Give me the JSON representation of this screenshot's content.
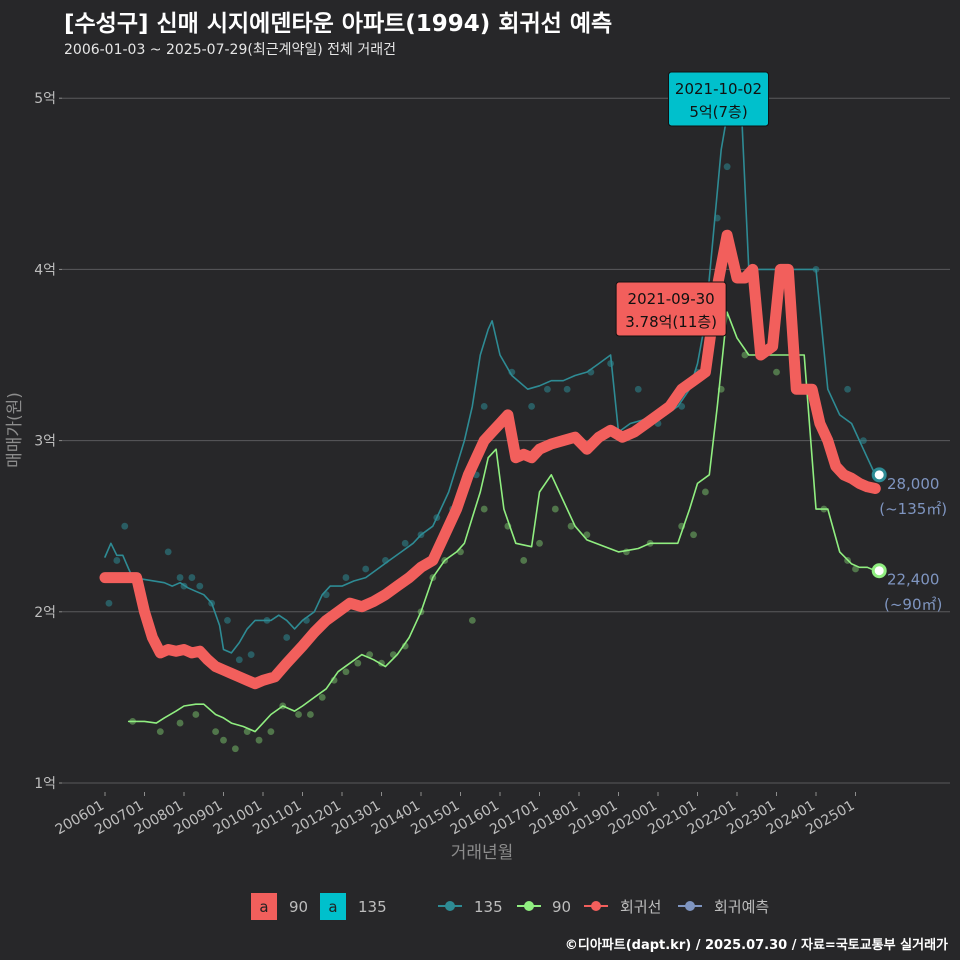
{
  "title": "[수성구] 신매 시지에덴타운 아파트(1994) 회귀선 예측",
  "subtitle": "2006-01-03 ~ 2025-07-29(최근계약일) 전체 거래건",
  "source": "©디아파트(dapt.kr) / 2025.07.30 / 자료=국토교통부 실거래가",
  "colors": {
    "c135": "#2e8b94",
    "c90": "#90ee80",
    "reg": "#f25f5c",
    "pred": "#7f95c0",
    "label135": "#00c0cc"
  },
  "chart_data": {
    "type": "line",
    "title": "[수성구] 신매 시지에덴타운 아파트(1994) 회귀선 예측",
    "xlabel": "거래년월",
    "ylabel": "매매가(원)",
    "ylim": [
      1,
      5.5
    ],
    "xlim": [
      2005.75,
      2027.5
    ],
    "y_ticks": [
      1,
      2,
      3,
      4,
      5
    ],
    "y_tick_labels": [
      "1억",
      "2억",
      "3억",
      "4억",
      "5억"
    ],
    "x_ticks": [
      2006,
      2007,
      2008,
      2009,
      2010,
      2011,
      2012,
      2013,
      2014,
      2015,
      2016,
      2017,
      2018,
      2019,
      2020,
      2021,
      2022,
      2023,
      2024,
      2025
    ],
    "x_tick_labels": [
      "200601",
      "200701",
      "200801",
      "200901",
      "201001",
      "201101",
      "201201",
      "201301",
      "201401",
      "201501",
      "201601",
      "201701",
      "201801",
      "201901",
      "202001",
      "202101",
      "202201",
      "202301",
      "202401",
      "202501"
    ],
    "series": [
      {
        "name": "135",
        "color": "#2e8b94",
        "x": [
          2006.0,
          2006.15,
          2006.3,
          2006.45,
          2006.6,
          2006.7,
          2007.5,
          2007.7,
          2007.9,
          2008.1,
          2008.3,
          2008.5,
          2008.7,
          2008.9,
          2009.0,
          2009.2,
          2009.4,
          2009.6,
          2009.8,
          2010.0,
          2010.2,
          2010.4,
          2010.6,
          2010.8,
          2011.0,
          2011.3,
          2011.5,
          2011.7,
          2012.0,
          2012.3,
          2012.6,
          2012.9,
          2013.2,
          2013.5,
          2013.8,
          2014.0,
          2014.3,
          2014.5,
          2014.7,
          2014.9,
          2015.1,
          2015.3,
          2015.5,
          2015.7,
          2015.8,
          2016.0,
          2016.3,
          2016.7,
          2017.0,
          2017.3,
          2017.6,
          2017.9,
          2018.2,
          2018.5,
          2018.8,
          2019.0,
          2019.3,
          2019.6,
          2019.9,
          2020.2,
          2020.5,
          2020.8,
          2021.0,
          2021.2,
          2021.4,
          2021.6,
          2021.75,
          2021.9,
          2022.1,
          2022.3,
          2022.6,
          2022.9,
          2023.3,
          2023.7,
          2024.0,
          2024.3,
          2024.6,
          2024.9,
          2025.1,
          2025.3,
          2025.5
        ],
        "values": [
          2.32,
          2.4,
          2.33,
          2.33,
          2.25,
          2.2,
          2.17,
          2.15,
          2.17,
          2.14,
          2.12,
          2.1,
          2.05,
          1.92,
          1.78,
          1.76,
          1.82,
          1.9,
          1.95,
          1.95,
          1.95,
          1.98,
          1.95,
          1.9,
          1.95,
          2.0,
          2.1,
          2.15,
          2.15,
          2.18,
          2.2,
          2.25,
          2.3,
          2.35,
          2.4,
          2.45,
          2.5,
          2.6,
          2.7,
          2.85,
          3.0,
          3.2,
          3.5,
          3.65,
          3.7,
          3.5,
          3.38,
          3.3,
          3.32,
          3.35,
          3.35,
          3.38,
          3.4,
          3.45,
          3.5,
          3.05,
          3.1,
          3.12,
          3.15,
          3.15,
          3.2,
          3.3,
          3.45,
          3.7,
          4.2,
          4.7,
          4.9,
          5.0,
          5.0,
          4.0,
          4.0,
          4.0,
          4.0,
          4.0,
          4.0,
          3.3,
          3.15,
          3.1,
          3.0,
          2.9,
          2.8
        ]
      },
      {
        "name": "90",
        "color": "#90ee80",
        "x": [
          2006.6,
          2007.0,
          2007.3,
          2007.5,
          2007.8,
          2008.0,
          2008.3,
          2008.5,
          2008.8,
          2009.0,
          2009.2,
          2009.5,
          2009.8,
          2010.0,
          2010.2,
          2010.5,
          2010.8,
          2011.0,
          2011.3,
          2011.6,
          2011.9,
          2012.2,
          2012.5,
          2012.8,
          2013.1,
          2013.4,
          2013.7,
          2014.0,
          2014.3,
          2014.6,
          2014.9,
          2015.1,
          2015.3,
          2015.5,
          2015.7,
          2015.9,
          2016.1,
          2016.4,
          2016.8,
          2017.0,
          2017.3,
          2017.6,
          2017.9,
          2018.2,
          2019.0,
          2019.5,
          2019.8,
          2020.2,
          2020.5,
          2020.8,
          2021.0,
          2021.3,
          2021.5,
          2021.75,
          2022.0,
          2022.3,
          2022.6,
          2022.9,
          2023.3,
          2023.7,
          2024.0,
          2024.3,
          2024.6,
          2024.9,
          2025.1,
          2025.3,
          2025.5
        ],
        "values": [
          1.36,
          1.36,
          1.35,
          1.38,
          1.42,
          1.45,
          1.46,
          1.46,
          1.4,
          1.38,
          1.35,
          1.33,
          1.3,
          1.35,
          1.4,
          1.45,
          1.42,
          1.45,
          1.5,
          1.55,
          1.65,
          1.7,
          1.75,
          1.72,
          1.68,
          1.75,
          1.85,
          2.0,
          2.2,
          2.3,
          2.35,
          2.4,
          2.55,
          2.7,
          2.9,
          2.95,
          2.6,
          2.4,
          2.38,
          2.7,
          2.8,
          2.65,
          2.5,
          2.42,
          2.35,
          2.37,
          2.4,
          2.4,
          2.4,
          2.6,
          2.75,
          2.8,
          3.2,
          3.75,
          3.6,
          3.5,
          3.5,
          3.5,
          3.5,
          3.5,
          2.6,
          2.6,
          2.35,
          2.28,
          2.26,
          2.26,
          2.24
        ]
      },
      {
        "name": "회귀선",
        "color": "#f25f5c",
        "x": [
          2006.0,
          2006.8,
          2007.0,
          2007.2,
          2007.4,
          2007.6,
          2007.8,
          2008.0,
          2008.2,
          2008.4,
          2008.6,
          2008.8,
          2009.0,
          2009.2,
          2009.4,
          2009.6,
          2009.8,
          2010.0,
          2010.3,
          2010.6,
          2011.0,
          2011.3,
          2011.6,
          2011.9,
          2012.2,
          2012.5,
          2012.8,
          2013.1,
          2013.4,
          2013.7,
          2014.0,
          2014.3,
          2014.6,
          2014.9,
          2015.2,
          2015.4,
          2015.6,
          2015.8,
          2016.0,
          2016.2,
          2016.4,
          2016.6,
          2016.8,
          2017.0,
          2017.3,
          2017.6,
          2017.9,
          2018.2,
          2018.5,
          2018.8,
          2019.1,
          2019.4,
          2019.7,
          2020.0,
          2020.3,
          2020.6,
          2020.9,
          2021.2,
          2021.5,
          2021.75,
          2022.0,
          2022.2,
          2022.4,
          2022.6,
          2022.9,
          2023.1,
          2023.3,
          2023.5,
          2023.7,
          2023.9,
          2024.1,
          2024.3,
          2024.5,
          2024.7,
          2024.9,
          2025.1,
          2025.3,
          2025.5
        ],
        "values": [
          2.2,
          2.2,
          2.0,
          1.85,
          1.76,
          1.78,
          1.77,
          1.78,
          1.76,
          1.77,
          1.72,
          1.68,
          1.66,
          1.64,
          1.62,
          1.6,
          1.58,
          1.6,
          1.62,
          1.7,
          1.8,
          1.88,
          1.95,
          2.0,
          2.05,
          2.03,
          2.06,
          2.1,
          2.15,
          2.2,
          2.26,
          2.3,
          2.45,
          2.6,
          2.8,
          2.9,
          3.0,
          3.05,
          3.1,
          3.15,
          2.9,
          2.92,
          2.9,
          2.95,
          2.98,
          3.0,
          3.02,
          2.95,
          3.02,
          3.06,
          3.02,
          3.05,
          3.1,
          3.15,
          3.2,
          3.3,
          3.35,
          3.4,
          3.9,
          4.2,
          3.95,
          3.95,
          4.0,
          3.5,
          3.55,
          4.0,
          4.0,
          3.3,
          3.3,
          3.3,
          3.1,
          3.0,
          2.85,
          2.8,
          2.78,
          2.75,
          2.73,
          2.72
        ]
      },
      {
        "name": "회귀예측",
        "color": "#7f95c0",
        "x": [],
        "values": []
      }
    ],
    "scatter_135": {
      "x": [
        2006.1,
        2006.3,
        2006.5,
        2007.6,
        2007.9,
        2008.0,
        2008.2,
        2008.4,
        2008.7,
        2009.1,
        2009.4,
        2009.7,
        2010.1,
        2010.6,
        2011.1,
        2011.6,
        2012.1,
        2012.6,
        2013.1,
        2013.6,
        2014.0,
        2014.4,
        2014.8,
        2015.0,
        2015.4,
        2015.6,
        2016.3,
        2016.8,
        2017.2,
        2017.7,
        2018.3,
        2018.8,
        2019.5,
        2020.0,
        2020.6,
        2021.0,
        2021.3,
        2021.5,
        2021.75,
        2022.1,
        2023.2,
        2024.0,
        2024.8,
        2025.2
      ],
      "values": [
        2.05,
        2.3,
        2.5,
        2.35,
        2.2,
        2.15,
        2.2,
        2.15,
        2.05,
        1.95,
        1.72,
        1.75,
        1.95,
        1.85,
        1.95,
        2.1,
        2.2,
        2.25,
        2.3,
        2.4,
        2.45,
        2.55,
        2.6,
        2.7,
        2.8,
        3.2,
        3.4,
        3.2,
        3.3,
        3.3,
        3.4,
        3.45,
        3.3,
        3.1,
        3.2,
        3.4,
        3.6,
        4.3,
        4.6,
        5.0,
        4.0,
        4.0,
        3.3,
        3.0
      ]
    },
    "scatter_90": {
      "x": [
        2006.7,
        2007.4,
        2007.9,
        2008.3,
        2008.8,
        2009.0,
        2009.3,
        2009.6,
        2009.9,
        2010.2,
        2010.5,
        2010.9,
        2011.2,
        2011.5,
        2011.8,
        2012.1,
        2012.4,
        2012.7,
        2013.0,
        2013.3,
        2013.6,
        2014.0,
        2014.3,
        2014.6,
        2015.0,
        2015.3,
        2015.6,
        2016.2,
        2016.6,
        2017.0,
        2017.4,
        2017.8,
        2018.2,
        2019.2,
        2019.8,
        2020.6,
        2020.9,
        2021.2,
        2021.6,
        2022.2,
        2023.0,
        2024.2,
        2024.8,
        2025.0
      ],
      "values": [
        1.36,
        1.3,
        1.35,
        1.4,
        1.3,
        1.25,
        1.2,
        1.3,
        1.25,
        1.3,
        1.45,
        1.4,
        1.4,
        1.5,
        1.6,
        1.65,
        1.7,
        1.75,
        1.7,
        1.75,
        1.8,
        2.0,
        2.2,
        2.3,
        2.35,
        1.95,
        2.6,
        2.5,
        2.3,
        2.4,
        2.6,
        2.5,
        2.45,
        2.35,
        2.4,
        2.5,
        2.45,
        2.7,
        3.3,
        3.5,
        3.4,
        2.6,
        2.3,
        2.25
      ]
    },
    "annotations": [
      {
        "date": "2021-09-30",
        "text": "3.78억(11층)",
        "series": "90",
        "x": 2021.75,
        "y": 3.78
      },
      {
        "date": "2021-10-02",
        "text": "5억(7층)",
        "series": "135",
        "x": 2021.76,
        "y": 5.0
      }
    ],
    "end_labels": [
      {
        "value": "28,000",
        "area": "(~135㎡)",
        "series": "135",
        "x": 2025.6,
        "y": 2.8
      },
      {
        "value": "22,400",
        "area": "(~90㎡)",
        "series": "90",
        "x": 2025.6,
        "y": 2.24
      }
    ],
    "legend": {
      "position": "bottom",
      "fill_items": [
        {
          "glyph": "a",
          "label": "90"
        },
        {
          "glyph": "a",
          "label": "135"
        }
      ],
      "line_items": [
        {
          "label": "135"
        },
        {
          "label": "90"
        },
        {
          "label": "회귀선"
        },
        {
          "label": "회귀예측"
        }
      ]
    }
  }
}
